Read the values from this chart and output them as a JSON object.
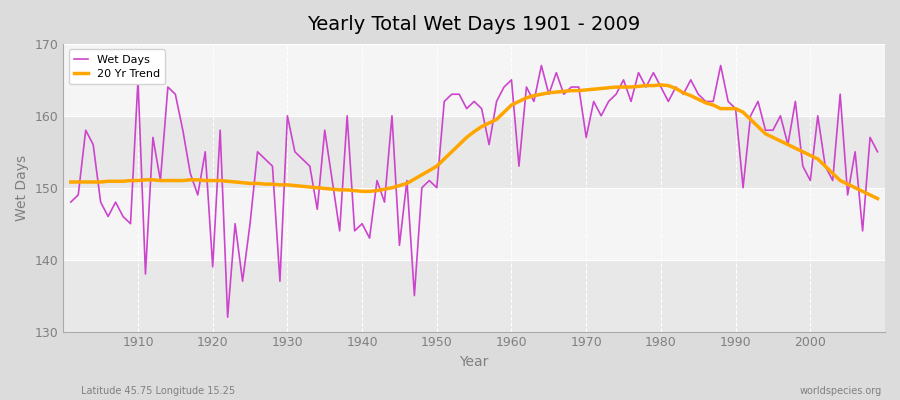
{
  "title": "Yearly Total Wet Days 1901 - 2009",
  "xlabel": "Year",
  "ylabel": "Wet Days",
  "subtitle": "Latitude 45.75 Longitude 15.25",
  "watermark": "worldspecies.org",
  "line_color": "#CC44CC",
  "trend_color": "#FFA500",
  "bg_color": "#DCDCDC",
  "plot_bg_color": "#F5F5F5",
  "band_color": "#E8E8E8",
  "ylim": [
    130,
    170
  ],
  "yticks": [
    130,
    140,
    150,
    160,
    170
  ],
  "years": [
    1901,
    1902,
    1903,
    1904,
    1905,
    1906,
    1907,
    1908,
    1909,
    1910,
    1911,
    1912,
    1913,
    1914,
    1915,
    1916,
    1917,
    1918,
    1919,
    1920,
    1921,
    1922,
    1923,
    1924,
    1925,
    1926,
    1927,
    1928,
    1929,
    1930,
    1931,
    1932,
    1933,
    1934,
    1935,
    1936,
    1937,
    1938,
    1939,
    1940,
    1941,
    1942,
    1943,
    1944,
    1945,
    1946,
    1947,
    1948,
    1949,
    1950,
    1951,
    1952,
    1953,
    1954,
    1955,
    1956,
    1957,
    1958,
    1959,
    1960,
    1961,
    1962,
    1963,
    1964,
    1965,
    1966,
    1967,
    1968,
    1969,
    1970,
    1971,
    1972,
    1973,
    1974,
    1975,
    1976,
    1977,
    1978,
    1979,
    1980,
    1981,
    1982,
    1983,
    1984,
    1985,
    1986,
    1987,
    1988,
    1989,
    1990,
    1991,
    1992,
    1993,
    1994,
    1995,
    1996,
    1997,
    1998,
    1999,
    2000,
    2001,
    2002,
    2003,
    2004,
    2005,
    2006,
    2007,
    2008,
    2009
  ],
  "wet_days": [
    148,
    149,
    158,
    156,
    148,
    146,
    148,
    146,
    145,
    165,
    138,
    157,
    151,
    164,
    163,
    158,
    152,
    149,
    155,
    139,
    158,
    132,
    145,
    137,
    145,
    155,
    154,
    153,
    137,
    160,
    155,
    154,
    153,
    147,
    158,
    151,
    144,
    160,
    144,
    145,
    143,
    151,
    148,
    160,
    142,
    151,
    135,
    150,
    151,
    150,
    162,
    163,
    163,
    161,
    162,
    161,
    156,
    162,
    164,
    165,
    153,
    164,
    162,
    167,
    163,
    166,
    163,
    164,
    164,
    157,
    162,
    160,
    162,
    163,
    165,
    162,
    166,
    164,
    166,
    164,
    162,
    164,
    163,
    165,
    163,
    162,
    162,
    167,
    162,
    161,
    150,
    160,
    162,
    158,
    158,
    160,
    156,
    162,
    153,
    151,
    160,
    153,
    151,
    163,
    149,
    155,
    144,
    157,
    155
  ],
  "trend": [
    150.8,
    150.8,
    150.8,
    150.8,
    150.8,
    150.9,
    150.9,
    150.9,
    151.0,
    151.0,
    151.1,
    151.1,
    151.0,
    151.0,
    151.0,
    151.0,
    151.1,
    151.1,
    151.0,
    151.0,
    151.0,
    150.9,
    150.8,
    150.7,
    150.6,
    150.6,
    150.5,
    150.5,
    150.4,
    150.4,
    150.3,
    150.2,
    150.1,
    150.0,
    149.9,
    149.8,
    149.7,
    149.7,
    149.6,
    149.5,
    149.5,
    149.6,
    149.8,
    150.0,
    150.3,
    150.6,
    151.2,
    151.8,
    152.4,
    153.0,
    154.0,
    155.0,
    156.0,
    157.0,
    157.8,
    158.5,
    159.0,
    159.5,
    160.5,
    161.5,
    162.0,
    162.5,
    162.8,
    163.0,
    163.2,
    163.3,
    163.4,
    163.5,
    163.5,
    163.6,
    163.7,
    163.8,
    163.9,
    164.0,
    164.0,
    164.0,
    164.1,
    164.2,
    164.2,
    164.3,
    164.2,
    163.8,
    163.2,
    162.8,
    162.3,
    161.8,
    161.5,
    161.0,
    161.0,
    161.0,
    160.5,
    159.5,
    158.5,
    157.5,
    157.0,
    156.5,
    156.0,
    155.5,
    155.0,
    154.5,
    154.0,
    153.0,
    152.0,
    151.0,
    150.5,
    150.0,
    149.5,
    149.0,
    148.5
  ]
}
